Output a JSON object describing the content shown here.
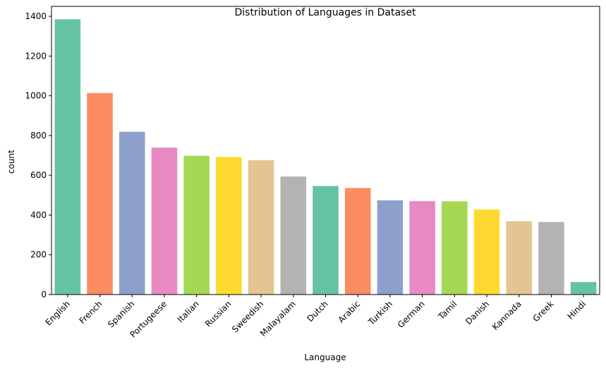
{
  "chart_data": {
    "type": "bar",
    "title": "Distribution of Languages in Dataset",
    "xlabel": "Language",
    "ylabel": "count",
    "ylim": [
      0,
      1450
    ],
    "yticks": [
      0,
      200,
      400,
      600,
      800,
      1000,
      1200,
      1400
    ],
    "grid": false,
    "legend": "none",
    "categories": [
      "English",
      "French",
      "Spanish",
      "Portugeese",
      "Italian",
      "Russian",
      "Sweedish",
      "Malayalam",
      "Dutch",
      "Arabic",
      "Turkish",
      "German",
      "Tamil",
      "Danish",
      "Kannada",
      "Greek",
      "Hindi"
    ],
    "values": [
      1385,
      1014,
      819,
      739,
      698,
      692,
      676,
      594,
      546,
      536,
      474,
      470,
      469,
      428,
      369,
      365,
      63
    ],
    "colors": [
      "#66c2a5",
      "#fc8d62",
      "#8da0cb",
      "#e78ac3",
      "#a6d854",
      "#ffd92f",
      "#e5c494",
      "#b3b3b3",
      "#66c2a5",
      "#fc8d62",
      "#8da0cb",
      "#e78ac3",
      "#a6d854",
      "#ffd92f",
      "#e5c494",
      "#b3b3b3",
      "#66c2a5"
    ]
  }
}
